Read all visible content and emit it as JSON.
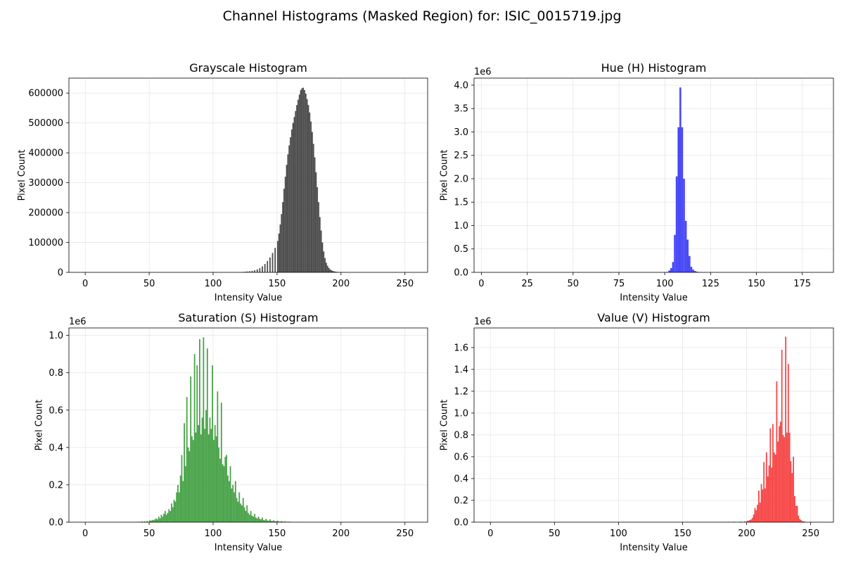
{
  "figure": {
    "suptitle": "Channel Histograms (Masked Region) for: ISIC_0015719.jpg"
  },
  "chart_data": [
    {
      "type": "bar",
      "title": "Grayscale Histogram",
      "xlabel": "Intensity Value",
      "ylabel": "Pixel Count",
      "color": "#4d4d4d",
      "xlim": [
        -12.75,
        267.75
      ],
      "ylim": [
        0,
        650000
      ],
      "xticks": [
        0,
        50,
        100,
        150,
        200,
        250
      ],
      "yticks": [
        0,
        100000,
        200000,
        300000,
        400000,
        500000,
        600000
      ],
      "ytick_labels": [
        "0",
        "100000",
        "200000",
        "300000",
        "400000",
        "500000",
        "600000"
      ],
      "offset_text": "",
      "grid": true,
      "bin_width": 1,
      "x": [
        122,
        124,
        126,
        128,
        130,
        132,
        134,
        136,
        138,
        140,
        142,
        144,
        146,
        148,
        150,
        151,
        152,
        153,
        154,
        155,
        156,
        157,
        158,
        159,
        160,
        161,
        162,
        163,
        164,
        165,
        166,
        167,
        168,
        169,
        170,
        171,
        172,
        173,
        174,
        175,
        176,
        177,
        178,
        179,
        180,
        181,
        182,
        183,
        184,
        185,
        186,
        187,
        188,
        189,
        190,
        191,
        192,
        193,
        194,
        195,
        196,
        197,
        198,
        199,
        200,
        201,
        202,
        203,
        204,
        205
      ],
      "values": [
        1000,
        2000,
        3000,
        4000,
        5000,
        7000,
        10000,
        14000,
        20000,
        28000,
        38000,
        50000,
        65000,
        82000,
        105000,
        130000,
        160000,
        195000,
        235000,
        280000,
        320000,
        360000,
        395000,
        425000,
        452000,
        478000,
        500000,
        520000,
        540000,
        560000,
        578000,
        595000,
        610000,
        616000,
        618000,
        610000,
        598000,
        580000,
        560000,
        535000,
        505000,
        470000,
        430000,
        385000,
        335000,
        285000,
        235000,
        185000,
        140000,
        100000,
        70000,
        48000,
        32000,
        22000,
        15000,
        10000,
        7000,
        5000,
        3500,
        2500,
        1800,
        1200,
        800,
        500,
        300,
        200,
        120,
        80,
        40,
        20
      ]
    },
    {
      "type": "bar",
      "title": "Hue (H) Histogram",
      "xlabel": "Intensity Value",
      "ylabel": "Pixel Count",
      "color": "#4848f6",
      "xlim": [
        -4,
        192
      ],
      "ylim": [
        0,
        4150000
      ],
      "xticks": [
        0,
        25,
        50,
        75,
        100,
        125,
        150,
        175
      ],
      "yticks": [
        0,
        500000,
        1000000,
        1500000,
        2000000,
        2500000,
        3000000,
        3500000,
        4000000
      ],
      "ytick_labels": [
        "0.0",
        "0.5",
        "1.0",
        "1.5",
        "2.0",
        "2.5",
        "3.0",
        "3.5",
        "4.0"
      ],
      "offset_text": "1e6",
      "grid": true,
      "bin_width": 1,
      "x": [
        101,
        102,
        103,
        104,
        105,
        106,
        107,
        108,
        109,
        110,
        111,
        112,
        113,
        114,
        115,
        116,
        117,
        118,
        119
      ],
      "values": [
        10000,
        40000,
        90000,
        220000,
        800000,
        2050000,
        3100000,
        3950000,
        3100000,
        2000000,
        1100000,
        700000,
        350000,
        120000,
        60000,
        30000,
        15000,
        8000,
        4000
      ]
    },
    {
      "type": "bar",
      "title": "Saturation (S) Histogram",
      "xlabel": "Intensity Value",
      "ylabel": "Pixel Count",
      "color": "#4aa44a",
      "xlim": [
        -12.75,
        267.75
      ],
      "ylim": [
        0,
        1040000
      ],
      "xticks": [
        0,
        50,
        100,
        150,
        200,
        250
      ],
      "yticks": [
        0,
        200000,
        400000,
        600000,
        800000,
        1000000
      ],
      "ytick_labels": [
        "0.0",
        "0.2",
        "0.4",
        "0.6",
        "0.8",
        "1.0"
      ],
      "offset_text": "1e6",
      "grid": true,
      "bin_width": 1,
      "x": [
        40,
        42,
        44,
        46,
        48,
        50,
        51,
        52,
        53,
        54,
        55,
        56,
        57,
        58,
        59,
        60,
        61,
        62,
        63,
        64,
        65,
        66,
        67,
        68,
        69,
        70,
        71,
        72,
        73,
        74,
        75,
        76,
        77,
        78,
        79,
        80,
        81,
        82,
        83,
        84,
        85,
        86,
        87,
        88,
        89,
        90,
        91,
        92,
        93,
        94,
        95,
        96,
        97,
        98,
        99,
        100,
        101,
        102,
        103,
        104,
        105,
        106,
        107,
        108,
        109,
        110,
        111,
        112,
        113,
        114,
        115,
        116,
        117,
        118,
        119,
        120,
        121,
        122,
        123,
        124,
        125,
        126,
        127,
        128,
        129,
        130,
        131,
        132,
        133,
        134,
        135,
        136,
        137,
        138,
        139,
        140,
        141,
        142,
        143,
        144,
        145,
        146,
        147,
        148,
        149,
        150,
        151,
        152,
        153,
        154,
        155,
        156,
        157,
        158,
        159,
        160,
        162,
        164,
        166,
        168,
        170,
        172,
        174,
        176,
        178,
        180,
        185,
        190
      ],
      "values": [
        2000,
        3000,
        4000,
        5000,
        7000,
        10000,
        8000,
        12000,
        10000,
        15000,
        20000,
        15000,
        30000,
        20000,
        40000,
        30000,
        45000,
        60000,
        40000,
        50000,
        70000,
        60000,
        100000,
        80000,
        120000,
        110000,
        160000,
        200000,
        160000,
        250000,
        360000,
        220000,
        530000,
        300000,
        670000,
        400000,
        380000,
        780000,
        460000,
        440000,
        900000,
        480000,
        840000,
        520000,
        980000,
        470000,
        560000,
        990000,
        500000,
        600000,
        930000,
        470000,
        560000,
        500000,
        840000,
        440000,
        520000,
        460000,
        700000,
        400000,
        340000,
        640000,
        310000,
        300000,
        350000,
        360000,
        250000,
        220000,
        300000,
        180000,
        200000,
        160000,
        220000,
        130000,
        110000,
        160000,
        100000,
        90000,
        130000,
        80000,
        60000,
        90000,
        50000,
        40000,
        60000,
        35000,
        30000,
        45000,
        25000,
        20000,
        30000,
        18000,
        15000,
        25000,
        12000,
        10000,
        18000,
        9000,
        8000,
        15000,
        7000,
        6000,
        10000,
        5000,
        5000,
        8000,
        4000,
        3000,
        6000,
        3000,
        2500,
        5000,
        2000,
        2000,
        3000,
        1500,
        1000,
        1000,
        800,
        600,
        500,
        400,
        300,
        200,
        150,
        100,
        50,
        20
      ]
    },
    {
      "type": "bar",
      "title": "Value (V) Histogram",
      "xlabel": "Intensity Value",
      "ylabel": "Pixel Count",
      "color": "#f64848",
      "xlim": [
        -12.75,
        267.75
      ],
      "ylim": [
        0,
        1780000
      ],
      "xticks": [
        0,
        50,
        100,
        150,
        200,
        250
      ],
      "yticks": [
        0,
        200000,
        400000,
        600000,
        800000,
        1000000,
        1200000,
        1400000,
        1600000
      ],
      "ytick_labels": [
        "0.0",
        "0.2",
        "0.4",
        "0.6",
        "0.8",
        "1.0",
        "1.2",
        "1.4",
        "1.6"
      ],
      "offset_text": "1e6",
      "grid": true,
      "bin_width": 1,
      "x": [
        180,
        185,
        190,
        195,
        198,
        200,
        201,
        202,
        203,
        204,
        205,
        206,
        207,
        208,
        209,
        210,
        211,
        212,
        213,
        214,
        215,
        216,
        217,
        218,
        219,
        220,
        221,
        222,
        223,
        224,
        225,
        226,
        227,
        228,
        229,
        230,
        231,
        232,
        233,
        234,
        235,
        236,
        237,
        238,
        239,
        240,
        241,
        242,
        243,
        244,
        245,
        246,
        248,
        250,
        255
      ],
      "values": [
        3000,
        4000,
        5000,
        6000,
        8000,
        12000,
        15000,
        20000,
        25000,
        40000,
        70000,
        130000,
        110000,
        160000,
        290000,
        180000,
        350000,
        300000,
        550000,
        310000,
        640000,
        420000,
        520000,
        860000,
        500000,
        900000,
        640000,
        620000,
        1290000,
        740000,
        880000,
        920000,
        1580000,
        800000,
        780000,
        1700000,
        820000,
        1450000,
        820000,
        560000,
        450000,
        600000,
        240000,
        150000,
        150000,
        60000,
        30000,
        20000,
        10000,
        8000,
        5000,
        3000,
        1500,
        800,
        300
      ]
    }
  ]
}
